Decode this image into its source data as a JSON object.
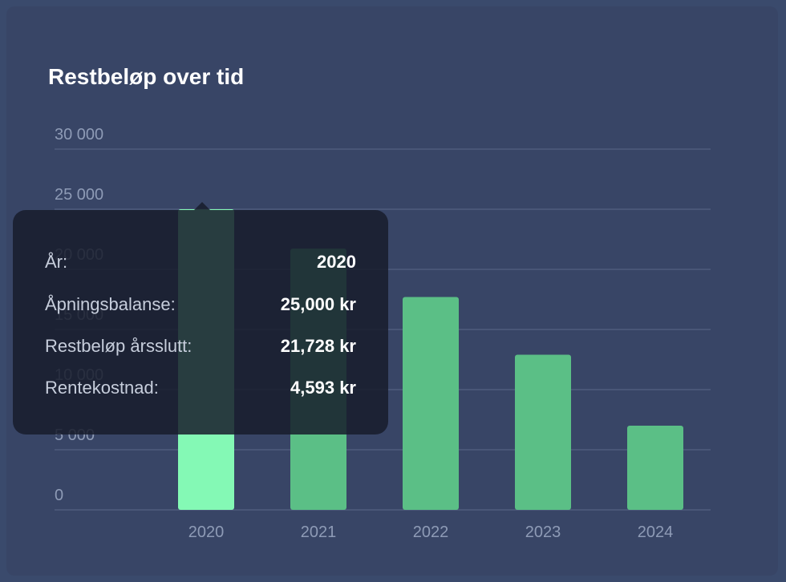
{
  "chart_data": {
    "type": "bar",
    "title": "Restbeløp over tid",
    "categories": [
      "2020",
      "2021",
      "2022",
      "2023",
      "2024"
    ],
    "values": [
      25000,
      21728,
      17700,
      12900,
      7000
    ],
    "ylim": [
      0,
      30000
    ],
    "yticks": [
      0,
      5000,
      10000,
      15000,
      20000,
      25000,
      30000
    ],
    "ytick_labels": [
      "0",
      "5 000",
      "10 000",
      "15 000",
      "20 000",
      "25 000",
      "30 000"
    ],
    "grid": true,
    "highlighted_index": 0,
    "colors": {
      "bar": "#5bbf86",
      "bar_highlight": "#84f9b5",
      "grid": "#4f5c7d",
      "tick_text": "#8e9bb6"
    }
  },
  "tooltip": {
    "rows": [
      {
        "key": "År:",
        "value": "2020"
      },
      {
        "key": "Åpningsbalanse:",
        "value": "25,000 kr"
      },
      {
        "key": "Restbeløp årsslutt:",
        "value": "21,728 kr"
      },
      {
        "key": "Rentekostnad:",
        "value": "4,593 kr"
      }
    ]
  }
}
